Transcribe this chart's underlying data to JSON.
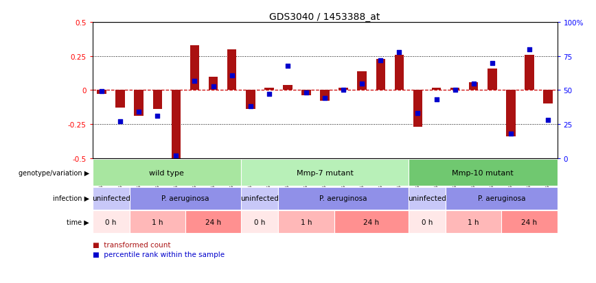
{
  "title": "GDS3040 / 1453388_at",
  "samples": [
    "GSM196062",
    "GSM196063",
    "GSM196064",
    "GSM196065",
    "GSM196066",
    "GSM196067",
    "GSM196068",
    "GSM196069",
    "GSM196070",
    "GSM196071",
    "GSM196072",
    "GSM196073",
    "GSM196074",
    "GSM196075",
    "GSM196076",
    "GSM196077",
    "GSM196078",
    "GSM196079",
    "GSM196080",
    "GSM196081",
    "GSM196082",
    "GSM196083",
    "GSM196084",
    "GSM196085",
    "GSM196086"
  ],
  "transformed_count": [
    -0.03,
    -0.13,
    -0.19,
    -0.14,
    -0.5,
    0.33,
    0.1,
    0.3,
    -0.14,
    0.02,
    0.04,
    -0.04,
    -0.08,
    0.02,
    0.14,
    0.23,
    0.26,
    -0.27,
    0.02,
    0.02,
    0.06,
    0.16,
    -0.34,
    0.26,
    -0.1
  ],
  "percentile_rank": [
    49,
    27,
    34,
    31,
    2,
    57,
    53,
    61,
    38,
    47,
    68,
    48,
    44,
    50,
    55,
    72,
    78,
    33,
    43,
    50,
    55,
    70,
    18,
    80,
    28
  ],
  "genotype_groups": [
    {
      "label": "wild type",
      "start": 0,
      "end": 8,
      "color": "#a8e6a0"
    },
    {
      "label": "Mmp-7 mutant",
      "start": 8,
      "end": 17,
      "color": "#b8f0b8"
    },
    {
      "label": "Mmp-10 mutant",
      "start": 17,
      "end": 25,
      "color": "#70c870"
    }
  ],
  "infection_groups": [
    {
      "label": "uninfected",
      "start": 0,
      "end": 2,
      "color": "#c8c8f8"
    },
    {
      "label": "P. aeruginosa",
      "start": 2,
      "end": 8,
      "color": "#9090e8"
    },
    {
      "label": "uninfected",
      "start": 8,
      "end": 10,
      "color": "#c8c8f8"
    },
    {
      "label": "P. aeruginosa",
      "start": 10,
      "end": 17,
      "color": "#9090e8"
    },
    {
      "label": "uninfected",
      "start": 17,
      "end": 19,
      "color": "#c8c8f8"
    },
    {
      "label": "P. aeruginosa",
      "start": 19,
      "end": 25,
      "color": "#9090e8"
    }
  ],
  "time_groups": [
    {
      "label": "0 h",
      "start": 0,
      "end": 2,
      "color": "#ffe8e8"
    },
    {
      "label": "1 h",
      "start": 2,
      "end": 5,
      "color": "#ffb8b8"
    },
    {
      "label": "24 h",
      "start": 5,
      "end": 8,
      "color": "#ff9090"
    },
    {
      "label": "0 h",
      "start": 8,
      "end": 10,
      "color": "#ffe8e8"
    },
    {
      "label": "1 h",
      "start": 10,
      "end": 13,
      "color": "#ffb8b8"
    },
    {
      "label": "24 h",
      "start": 13,
      "end": 17,
      "color": "#ff9090"
    },
    {
      "label": "0 h",
      "start": 17,
      "end": 19,
      "color": "#ffe8e8"
    },
    {
      "label": "1 h",
      "start": 19,
      "end": 22,
      "color": "#ffb8b8"
    },
    {
      "label": "24 h",
      "start": 22,
      "end": 25,
      "color": "#ff9090"
    }
  ],
  "bar_color": "#aa1111",
  "dot_color": "#0000cc",
  "zero_line_color": "#cc0000",
  "ylim": [
    -0.5,
    0.5
  ],
  "yticks_left": [
    -0.5,
    -0.25,
    0.0,
    0.25,
    0.5
  ],
  "yticks_left_labels": [
    "-0.5",
    "-0.25",
    "0",
    "0.25",
    "0.5"
  ],
  "right_yticks_scaled": [
    -0.5,
    -0.25,
    0.0,
    0.25,
    0.5
  ],
  "right_ylabels": [
    "0",
    "25",
    "50",
    "75",
    "100%"
  ],
  "row_labels": [
    "genotype/variation",
    "infection",
    "time"
  ],
  "legend_bar": "transformed count",
  "legend_dot": "percentile rank within the sample"
}
